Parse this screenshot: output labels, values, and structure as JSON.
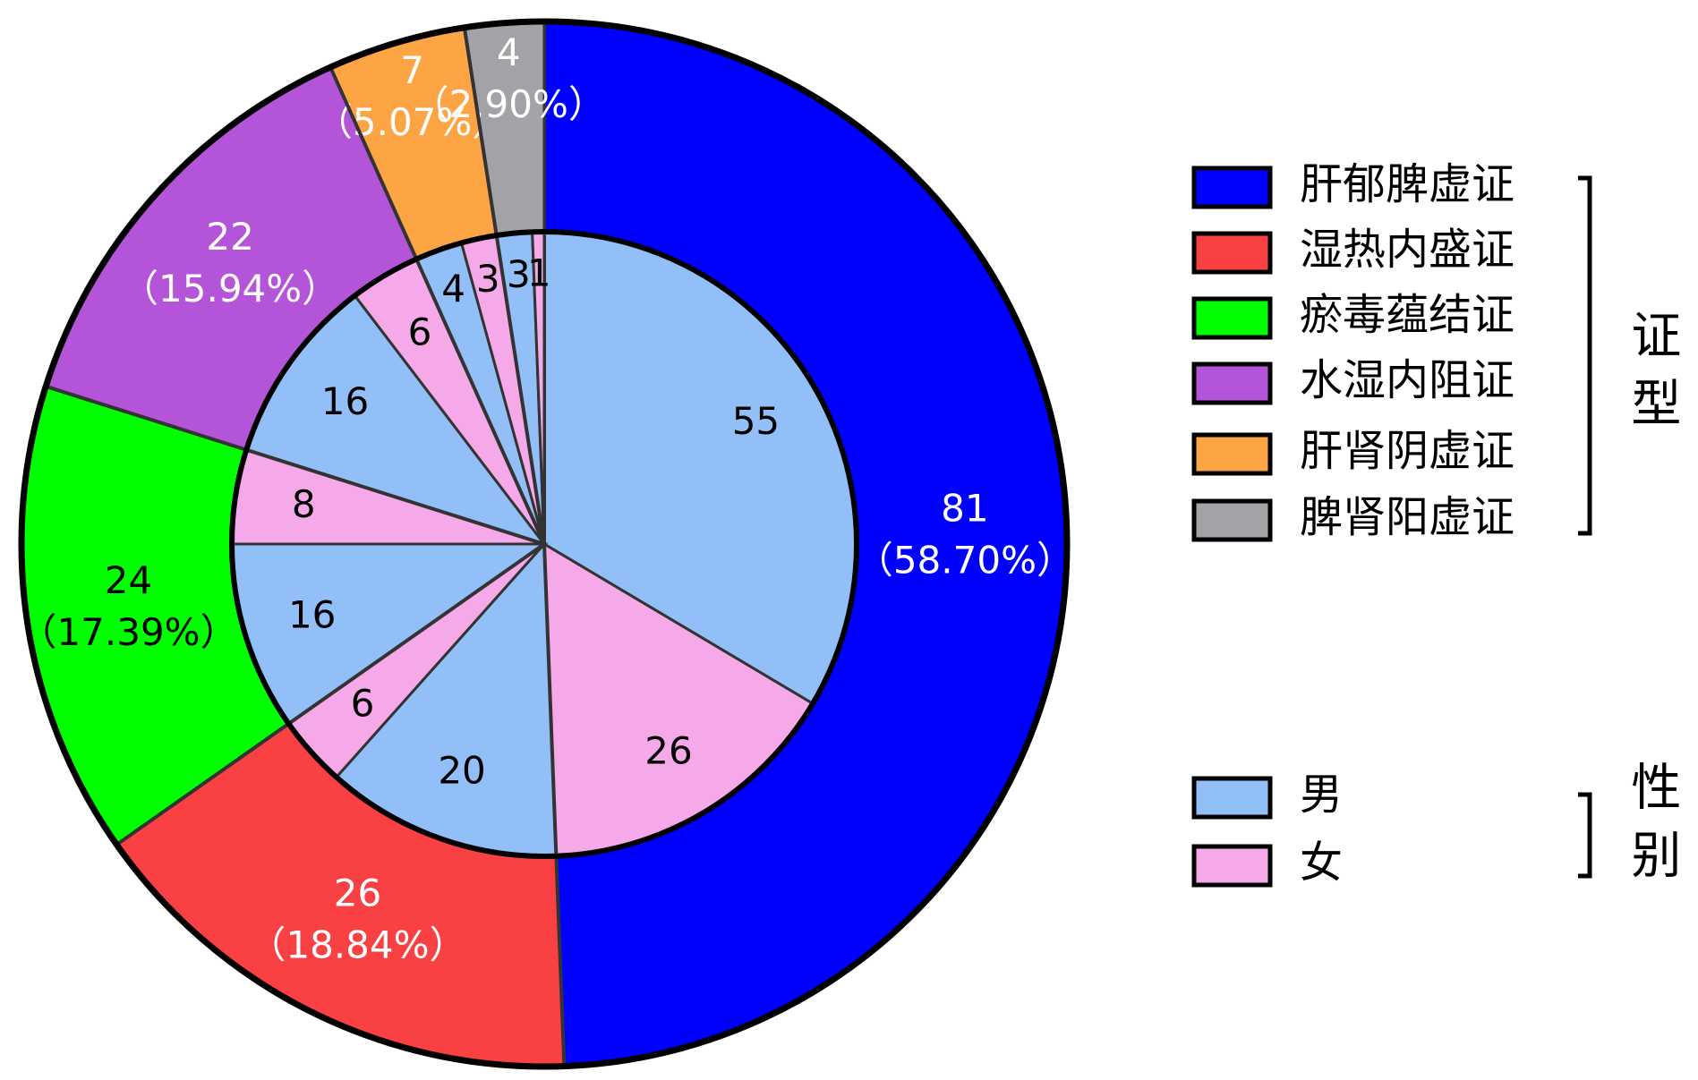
{
  "chart_data": {
    "type": "nested-pie",
    "outer": {
      "name": "证型",
      "categories": [
        "肝郁脾虚证",
        "湿热内盛证",
        "瘀毒蕴结证",
        "水湿内阻证",
        "肝肾阴虚证",
        "脾肾阳虚证"
      ],
      "values": [
        81,
        26,
        24,
        22,
        7,
        4
      ],
      "percent_labels": [
        "（58.70%）",
        "（18.84%）",
        "（17.39%）",
        "（15.94%）",
        "（5.07%）",
        "（2.90%）"
      ],
      "colors": [
        "#0000ff",
        "#f94144",
        "#00ff00",
        "#b455d9",
        "#fda445",
        "#a3a3a7"
      ],
      "label_colors": [
        "#ffffff",
        "#ffffff",
        "#000000",
        "#ffffff",
        "#ffffff",
        "#ffffff"
      ]
    },
    "inner": {
      "name": "性别",
      "categories": [
        "男",
        "女"
      ],
      "colors": [
        "#93bff8",
        "#f5a9e8"
      ],
      "values": [
        [
          55,
          26
        ],
        [
          20,
          6
        ],
        [
          16,
          8
        ],
        [
          16,
          6
        ],
        [
          4,
          3
        ],
        [
          3,
          1
        ]
      ]
    }
  }
}
